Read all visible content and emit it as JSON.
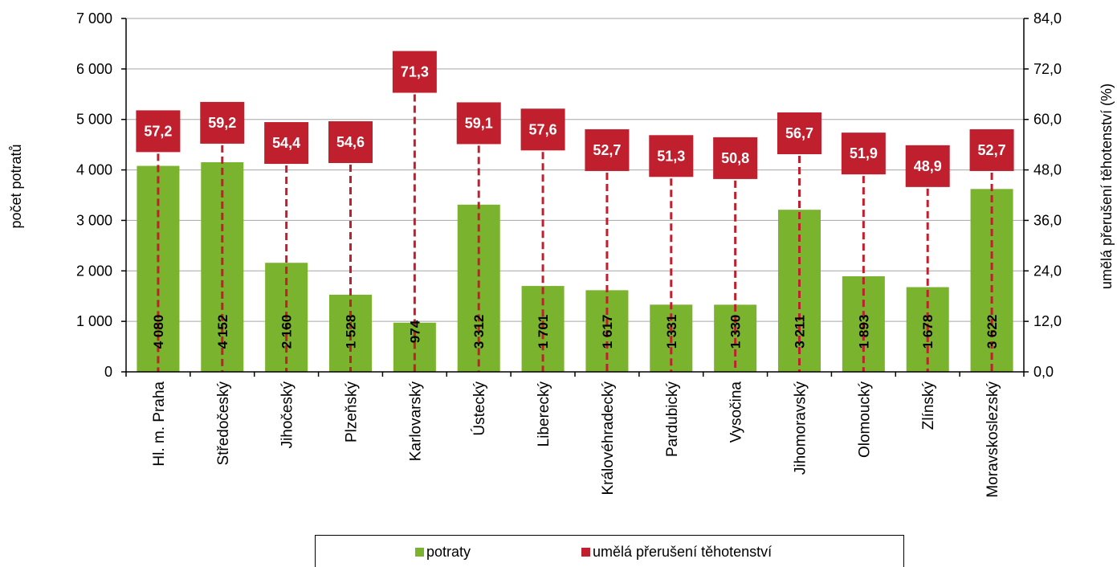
{
  "chart_data": {
    "type": "bar",
    "categories": [
      "Hl. m. Praha",
      "Středočeský",
      "Jihočeský",
      "Plzeňský",
      "Karlovarský",
      "Ústecký",
      "Liberecký",
      "Královéhradecký",
      "Pardubický",
      "Vysočina",
      "Jihomoravský",
      "Olomoucký",
      "Zlínský",
      "Moravskoslezský"
    ],
    "series": [
      {
        "name": "potraty",
        "axis": "left",
        "color": "#7ab32e",
        "values": [
          4080,
          4152,
          2160,
          1528,
          974,
          3312,
          1701,
          1617,
          1331,
          1330,
          3211,
          1893,
          1678,
          3622
        ],
        "labels": [
          "4 080",
          "4 152",
          "2 160",
          "1 528",
          "974",
          "3 312",
          "1 701",
          "1 617",
          "1 331",
          "1 330",
          "3 211",
          "1 893",
          "1 678",
          "3 622"
        ]
      },
      {
        "name": "umělá přerušení těhotenství",
        "axis": "right",
        "color": "#c0202e",
        "values": [
          57.2,
          59.2,
          54.4,
          54.6,
          71.3,
          59.1,
          57.6,
          52.7,
          51.3,
          50.8,
          56.7,
          51.9,
          48.9,
          52.7
        ],
        "labels": [
          "57,2",
          "59,2",
          "54,4",
          "54,6",
          "71,3",
          "59,1",
          "57,6",
          "52,7",
          "51,3",
          "50,8",
          "56,7",
          "51,9",
          "48,9",
          "52,7"
        ]
      }
    ],
    "ylabel": "počet potratů",
    "y2label": "umělá přerušení těhotenství (%)",
    "ylim": [
      0,
      7000
    ],
    "y2lim": [
      0,
      84
    ],
    "yticks": [
      0,
      1000,
      2000,
      3000,
      4000,
      5000,
      6000,
      7000
    ],
    "yticklabels": [
      "0",
      "1 000",
      "2 000",
      "3 000",
      "4 000",
      "5 000",
      "6 000",
      "7 000"
    ],
    "y2ticks": [
      0,
      12,
      24,
      36,
      48,
      60,
      72,
      84
    ],
    "y2ticklabels": [
      "0,0",
      "12,0",
      "24,0",
      "36,0",
      "48,0",
      "60,0",
      "72,0",
      "84,0"
    ],
    "grid": true,
    "legend_position": "bottom"
  }
}
